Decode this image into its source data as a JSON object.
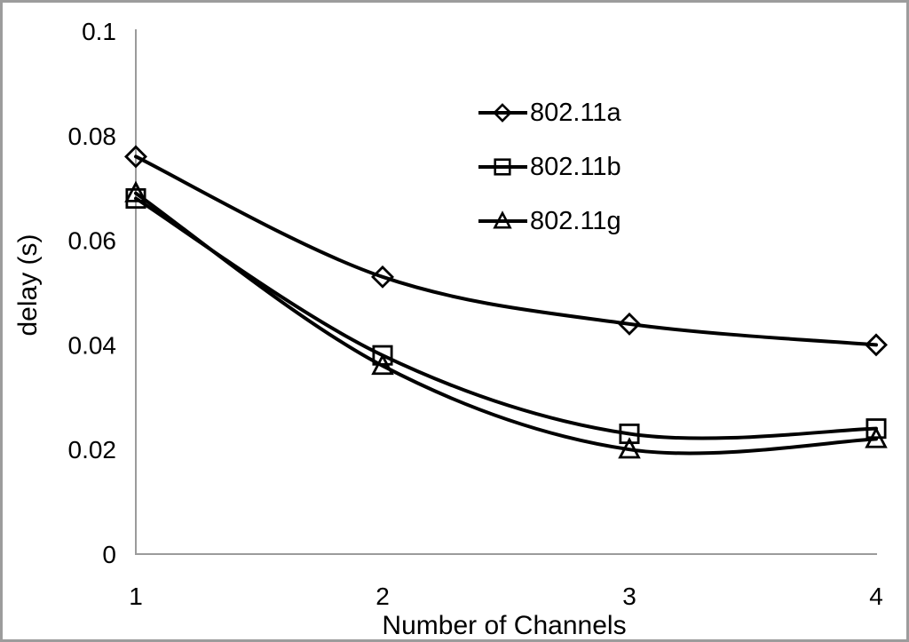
{
  "chart_data": {
    "type": "line",
    "title": "",
    "xlabel": "Number of Channels",
    "ylabel": "delay (s)",
    "x": [
      1,
      2,
      3,
      4
    ],
    "xlim": [
      1,
      4
    ],
    "ylim": [
      0,
      0.1
    ],
    "x_tick_labels": [
      "1",
      "2",
      "3",
      "4"
    ],
    "y_tick_values": [
      0,
      0.02,
      0.04,
      0.06,
      0.08,
      0.1
    ],
    "y_tick_labels": [
      "0",
      "0.02",
      "0.04",
      "0.06",
      "0.08",
      "0.1"
    ],
    "grid": false,
    "legend_position": "upper-center-inside",
    "line_style": "smooth",
    "colors": {
      "series_line": "#000000",
      "axis_line": "#9b9b9b",
      "text": "#000000",
      "frame_border": "#9c9c9c",
      "background": "#ffffff"
    },
    "series": [
      {
        "name": "802.11a",
        "marker": "diamond",
        "values": [
          0.076,
          0.053,
          0.044,
          0.04
        ]
      },
      {
        "name": "802.11b",
        "marker": "square",
        "values": [
          0.068,
          0.038,
          0.023,
          0.024
        ]
      },
      {
        "name": "802.11g",
        "marker": "triangle",
        "values": [
          0.069,
          0.036,
          0.02,
          0.022
        ]
      }
    ]
  }
}
